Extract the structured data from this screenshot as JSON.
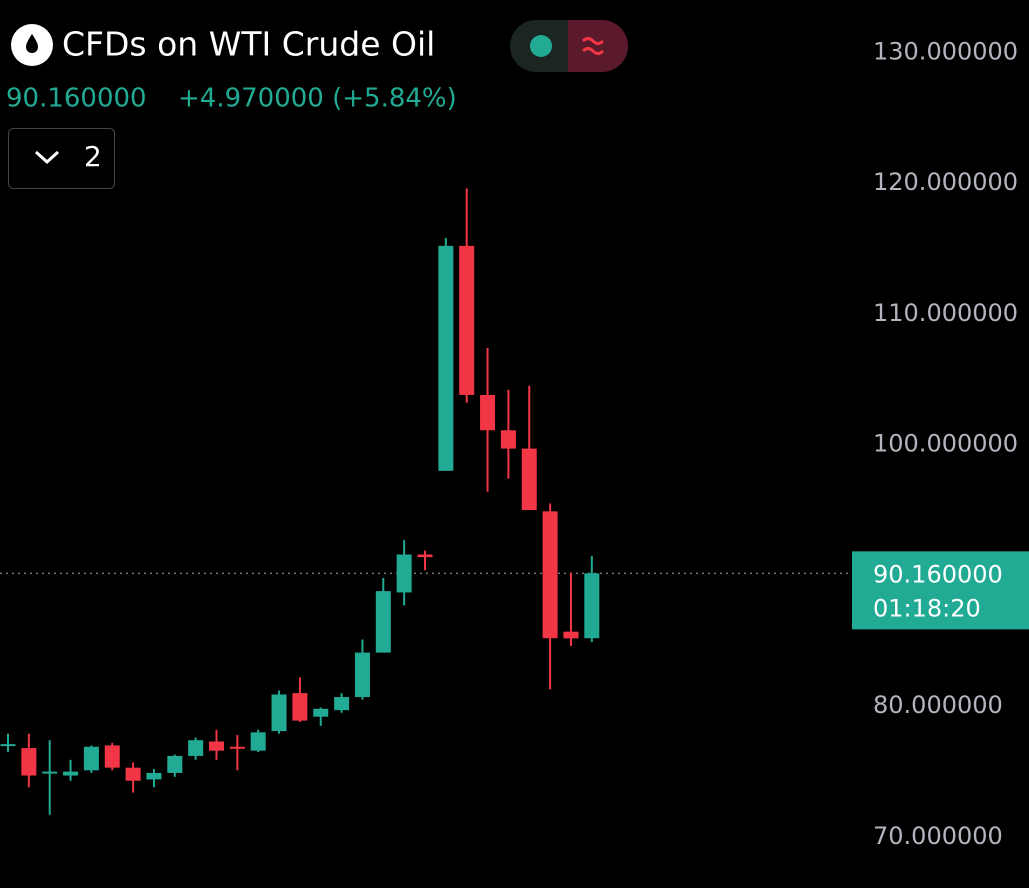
{
  "chart_data": {
    "type": "candlestick",
    "title": "CFDs on WTI Crude Oil",
    "last_price": {
      "value": 90.16,
      "label": "90.160000"
    },
    "change": "+4.970000 (+5.84%)",
    "countdown": "01:18:20",
    "indicator_count": "2",
    "up_color": "#22ab94",
    "down_color": "#f23645",
    "open": [
      77.0,
      76.8,
      74.9,
      74.7,
      75.1,
      77.0,
      75.3,
      74.4,
      74.9,
      76.2,
      77.3,
      76.9,
      76.6,
      78.1,
      81.0,
      79.2,
      79.7,
      80.7,
      84.1,
      88.7,
      91.6,
      98.0,
      115.2,
      103.8,
      101.1,
      99.7,
      94.9,
      85.7,
      85.2
    ],
    "high": [
      77.9,
      77.9,
      77.4,
      75.9,
      77.0,
      77.2,
      75.7,
      75.2,
      76.3,
      77.6,
      78.2,
      77.8,
      78.2,
      81.2,
      82.2,
      79.9,
      81.0,
      85.1,
      89.8,
      92.7,
      91.9,
      115.8,
      119.6,
      107.4,
      104.2,
      104.5,
      95.5,
      90.2,
      91.5
    ],
    "low": [
      76.5,
      73.8,
      71.7,
      74.3,
      74.9,
      75.1,
      73.4,
      73.8,
      74.6,
      75.9,
      75.9,
      75.1,
      76.5,
      77.9,
      78.8,
      78.5,
      79.5,
      80.5,
      84.1,
      87.7,
      90.4,
      98.0,
      103.2,
      96.4,
      97.4,
      95.0,
      81.3,
      84.6,
      84.9
    ],
    "close": [
      77.1,
      74.7,
      75.0,
      75.0,
      76.9,
      75.3,
      74.3,
      74.9,
      76.2,
      77.4,
      76.6,
      76.8,
      78.0,
      80.9,
      78.9,
      79.8,
      80.7,
      84.1,
      88.8,
      91.6,
      91.4,
      115.2,
      103.8,
      101.1,
      99.7,
      95.0,
      85.2,
      85.19,
      90.16
    ],
    "ylim": [
      66.1,
      134.0
    ],
    "yticks": [
      {
        "value": 70,
        "label": "70.000000"
      },
      {
        "value": 80,
        "label": "80.000000"
      },
      {
        "value": 100,
        "label": "100.000000"
      },
      {
        "value": 110,
        "label": "110.000000"
      },
      {
        "value": 120,
        "label": "120.000000"
      },
      {
        "value": 130,
        "label": "130.000000"
      }
    ]
  }
}
